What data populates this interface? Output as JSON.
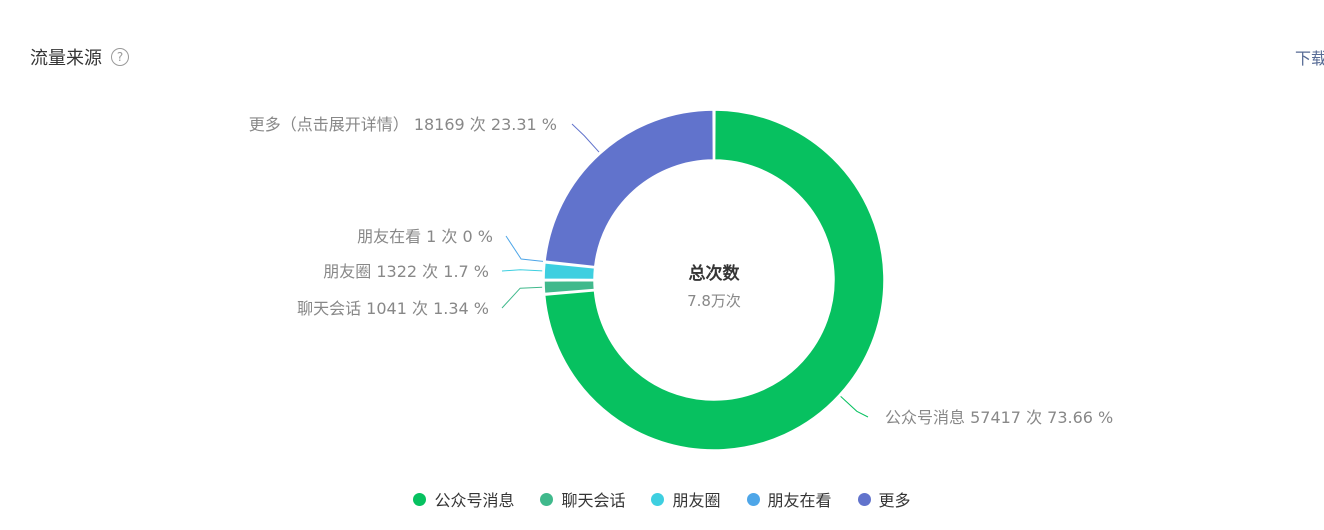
{
  "header": {
    "title": "流量来源",
    "help": "?",
    "download": "下载"
  },
  "chart_data": {
    "type": "pie",
    "center_title": "总次数",
    "center_value": "7.8万次",
    "slices": [
      {
        "name": "公众号消息",
        "count": 57417,
        "percent": 73.66,
        "label": "公众号消息 57417 次 73.66 %",
        "color": "#07c160"
      },
      {
        "name": "聊天会话",
        "count": 1041,
        "percent": 1.34,
        "label": "聊天会话 1041 次 1.34 %",
        "color": "#40b98c"
      },
      {
        "name": "朋友圈",
        "count": 1322,
        "percent": 1.7,
        "label": "朋友圈 1322 次 1.7 %",
        "color": "#3ecfe0"
      },
      {
        "name": "朋友在看",
        "count": 1,
        "percent": 0,
        "label": "朋友在看 1 次 0 %",
        "color": "#4ea6e8"
      },
      {
        "name": "更多",
        "count": 18169,
        "percent": 23.31,
        "label": "更多（点击展开详情） 18169 次 23.31 %",
        "color": "#6173cc"
      }
    ],
    "legend_position": "bottom"
  }
}
